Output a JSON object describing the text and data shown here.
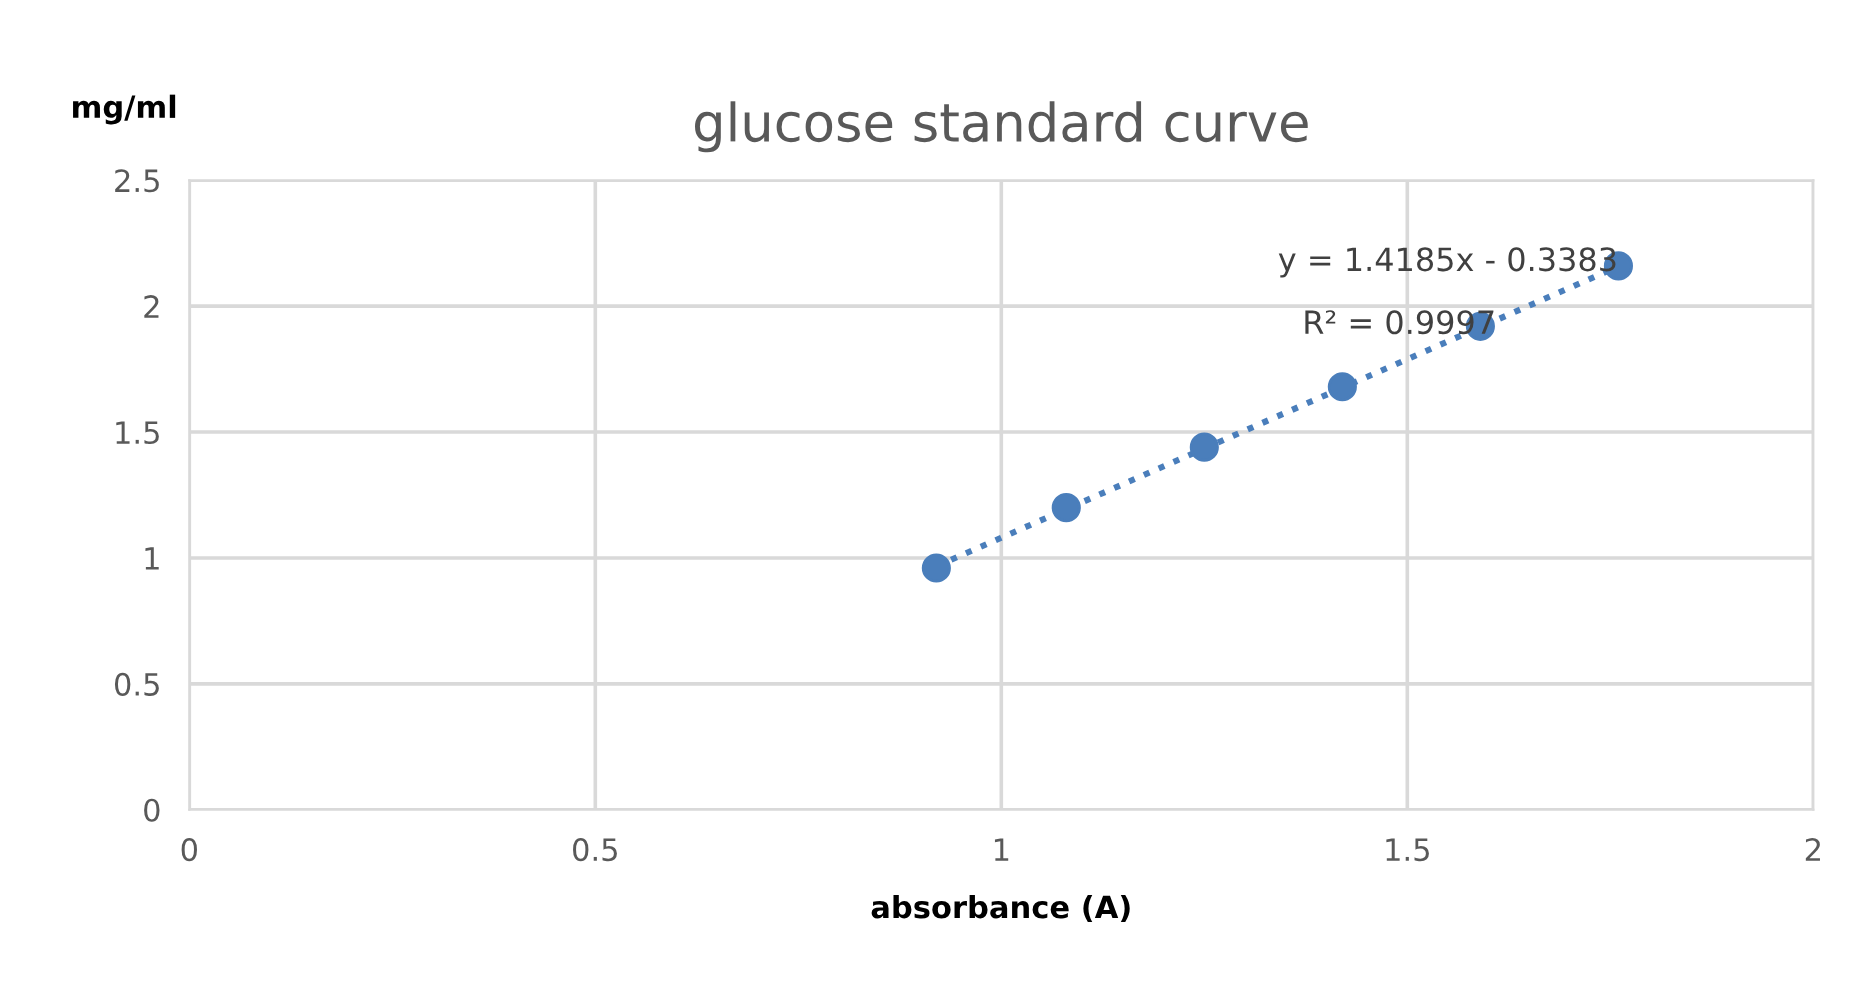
{
  "chart_data": {
    "type": "scatter",
    "title": "glucose standard curve",
    "xlabel": "absorbance (A)",
    "ylabel": "mg/ml",
    "x": [
      0.92,
      1.08,
      1.25,
      1.42,
      1.59,
      1.76
    ],
    "series": [
      {
        "color": "#4a7ebb",
        "marker": "circle",
        "values": [
          0.96,
          1.2,
          1.44,
          1.68,
          1.92,
          2.16
        ]
      },
      {
        "type": "line",
        "color": "#4a7ebb",
        "line_style": "dotted",
        "x": [
          0.92,
          1.76
        ],
        "values": [
          0.967,
          2.158
        ]
      }
    ],
    "annotations": [
      "y = 1.4185x - 0.3383",
      "R² = 0.9997"
    ],
    "xlim": [
      0,
      2
    ],
    "xticks": [
      0,
      0.5,
      1,
      1.5,
      2
    ],
    "ylim": [
      0,
      2.5
    ],
    "yticks": [
      0,
      0.5,
      1,
      1.5,
      2,
      2.5
    ],
    "grid": true,
    "legend": false
  }
}
